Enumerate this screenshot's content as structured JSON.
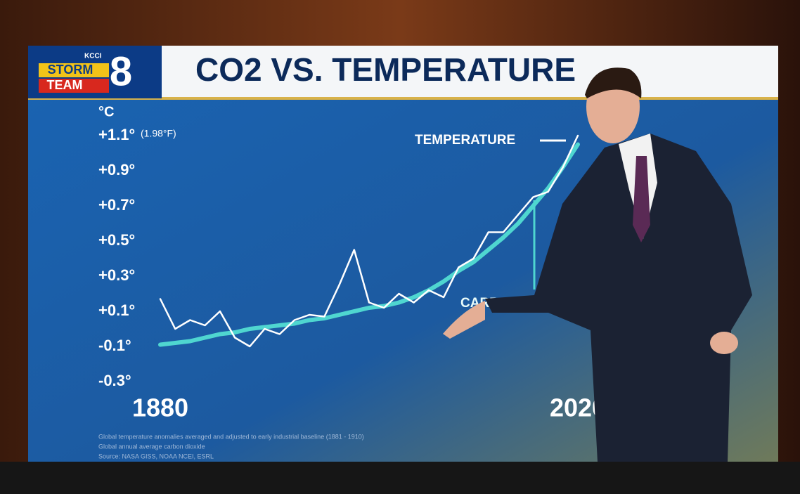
{
  "logo": {
    "station": "KCCI",
    "line1": "STORM",
    "line2": "TEAM",
    "number": "8"
  },
  "chart_data": {
    "type": "line",
    "title": "CO2 VS. TEMPERATURE",
    "y_label": "°C",
    "annotation": "(1.98°F)",
    "x": [
      1880,
      1885,
      1890,
      1895,
      1900,
      1905,
      1910,
      1915,
      1920,
      1925,
      1930,
      1935,
      1940,
      1945,
      1950,
      1955,
      1960,
      1965,
      1970,
      1975,
      1980,
      1985,
      1990,
      1995,
      2000,
      2005,
      2010,
      2015,
      2020
    ],
    "xlim": [
      1880,
      2020
    ],
    "xticks": [
      1880,
      2020
    ],
    "ylim": [
      -0.35,
      1.2
    ],
    "yticks": [
      {
        "value": 1.1,
        "label": "+1.1°"
      },
      {
        "value": 0.9,
        "label": "+0.9°"
      },
      {
        "value": 0.7,
        "label": "+0.7°"
      },
      {
        "value": 0.5,
        "label": "+0.5°"
      },
      {
        "value": 0.3,
        "label": "+0.3°"
      },
      {
        "value": 0.1,
        "label": "+0.1°"
      },
      {
        "value": -0.1,
        "label": "-0.1°"
      },
      {
        "value": -0.3,
        "label": "-0.3°"
      }
    ],
    "series": [
      {
        "name": "TEMPERATURE",
        "color": "#ffffff",
        "values": [
          0.17,
          0.0,
          0.05,
          0.02,
          0.1,
          -0.05,
          -0.1,
          0.0,
          -0.03,
          0.05,
          0.08,
          0.07,
          0.25,
          0.45,
          0.15,
          0.12,
          0.2,
          0.15,
          0.22,
          0.18,
          0.35,
          0.4,
          0.55,
          0.55,
          0.65,
          0.75,
          0.78,
          0.92,
          1.1
        ]
      },
      {
        "name": "CARBON DIOXIDE",
        "color": "#4fd6d0",
        "values": [
          -0.09,
          -0.08,
          -0.07,
          -0.05,
          -0.03,
          -0.02,
          0.0,
          0.01,
          0.02,
          0.03,
          0.05,
          0.06,
          0.08,
          0.1,
          0.12,
          0.13,
          0.15,
          0.18,
          0.22,
          0.27,
          0.33,
          0.38,
          0.45,
          0.52,
          0.6,
          0.7,
          0.8,
          0.92,
          1.05
        ]
      }
    ],
    "notes": [
      "Global temperature anomalies averaged and adjusted to early industrial baseline (1881 - 1910)",
      "Global annual average carbon dioxide",
      "Source: NASA GISS, NOAA NCEI, ESRL"
    ]
  }
}
